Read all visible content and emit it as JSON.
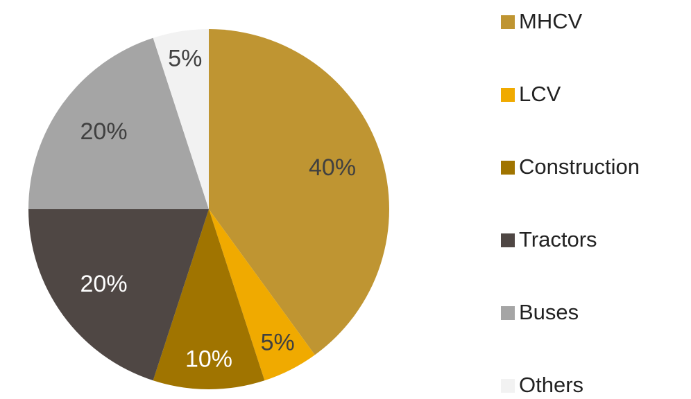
{
  "chart_data": {
    "type": "pie",
    "categories": [
      "MHCV",
      "LCV",
      "Construction",
      "Tractors",
      "Buses",
      "Others"
    ],
    "values": [
      40,
      5,
      10,
      20,
      20,
      5
    ],
    "value_labels": [
      "40%",
      "5%",
      "10%",
      "20%",
      "20%",
      "5%"
    ],
    "colors": [
      "#bf9532",
      "#f0aa00",
      "#a07400",
      "#4f4744",
      "#a5a5a5",
      "#f2f2f2"
    ],
    "legend": "right"
  }
}
